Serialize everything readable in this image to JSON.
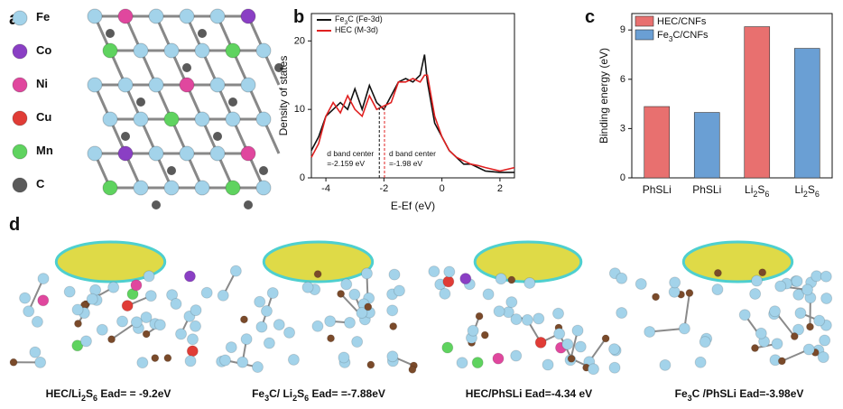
{
  "panel_a": {
    "label": "a",
    "elements": [
      {
        "symbol": "Fe",
        "color": "#a3d3ea"
      },
      {
        "symbol": "Co",
        "color": "#8a3fc4"
      },
      {
        "symbol": "Ni",
        "color": "#e0479e"
      },
      {
        "symbol": "Cu",
        "color": "#e03c36"
      },
      {
        "symbol": "Mn",
        "color": "#5fd35f"
      },
      {
        "symbol": "C",
        "color": "#5a5a5a"
      }
    ]
  },
  "chart_data": [
    {
      "type": "line",
      "panel_label": "b",
      "xlabel": "E-Ef (eV)",
      "ylabel": "Density of states",
      "x": [
        -4.5,
        -4.25,
        -4,
        -3.75,
        -3.5,
        -3.25,
        -3,
        -2.75,
        -2.5,
        -2.25,
        -2,
        -1.75,
        -1.5,
        -1.25,
        -1,
        -0.75,
        -0.6,
        -0.5,
        -0.25,
        0,
        0.25,
        0.5,
        0.75,
        1,
        1.25,
        1.5,
        2,
        2.5
      ],
      "series": [
        {
          "name": "Fe3C (Fe-3d)",
          "color": "#111111",
          "values": [
            4,
            6,
            9,
            10,
            11,
            10,
            13,
            10,
            13.5,
            11,
            10,
            12,
            14,
            14.5,
            14,
            15,
            18,
            14,
            8,
            6,
            4,
            3,
            2,
            2,
            1.5,
            1,
            0.8,
            0.8
          ]
        },
        {
          "name": "HEC (M-3d)",
          "color": "#e02020",
          "values": [
            3,
            5,
            9,
            11,
            9.5,
            12,
            10,
            9,
            12,
            10,
            10.5,
            11,
            14,
            14,
            14.5,
            14,
            15,
            15,
            9,
            6,
            4,
            3,
            2.5,
            2,
            1.8,
            1.5,
            1,
            1.5
          ]
        }
      ],
      "annotations": [
        {
          "lines": [
            "d band center",
            "=-2.159 eV"
          ],
          "x": -2.159,
          "color": "#111111"
        },
        {
          "lines": [
            "d band center",
            "=-1.98 eV"
          ],
          "x": -1.98,
          "color": "#e02020"
        }
      ],
      "xlim": [
        -4.5,
        2.5
      ],
      "xticks": [
        -4,
        -2,
        0,
        2
      ],
      "ylim": [
        0,
        24
      ],
      "yticks": [
        0,
        10,
        20
      ]
    },
    {
      "type": "bar",
      "panel_label": "c",
      "ylabel": "Binding energy (eV)",
      "categories": [
        "PhSLi",
        "PhSLi",
        "Li2S6",
        "Li2S6"
      ],
      "series": [
        {
          "name": "HEC/CNFs",
          "color": "#e8706f",
          "values": [
            4.34,
            null,
            9.2,
            null
          ]
        },
        {
          "name": "Fe3C/CNFs",
          "color": "#6a9fd4",
          "values": [
            null,
            3.98,
            null,
            7.88
          ]
        }
      ],
      "ylim": [
        0,
        10
      ],
      "yticks": [
        0,
        3,
        6,
        9
      ]
    }
  ],
  "panel_d": {
    "label": "d",
    "captions": [
      {
        "text": "HEC/Li2S6 Ead= = -9.2eV",
        "color": "#e8706f"
      },
      {
        "text": "Fe3C/ Li2S6 Ead= =-7.88eV",
        "color": "#2f7ac0"
      },
      {
        "text": "HEC/PhSLi Ead=-4.34 eV",
        "color": "#e8706f"
      },
      {
        "text": "Fe3C /PhSLi Ead=-3.98eV",
        "color": "#2f7ac0"
      }
    ]
  }
}
